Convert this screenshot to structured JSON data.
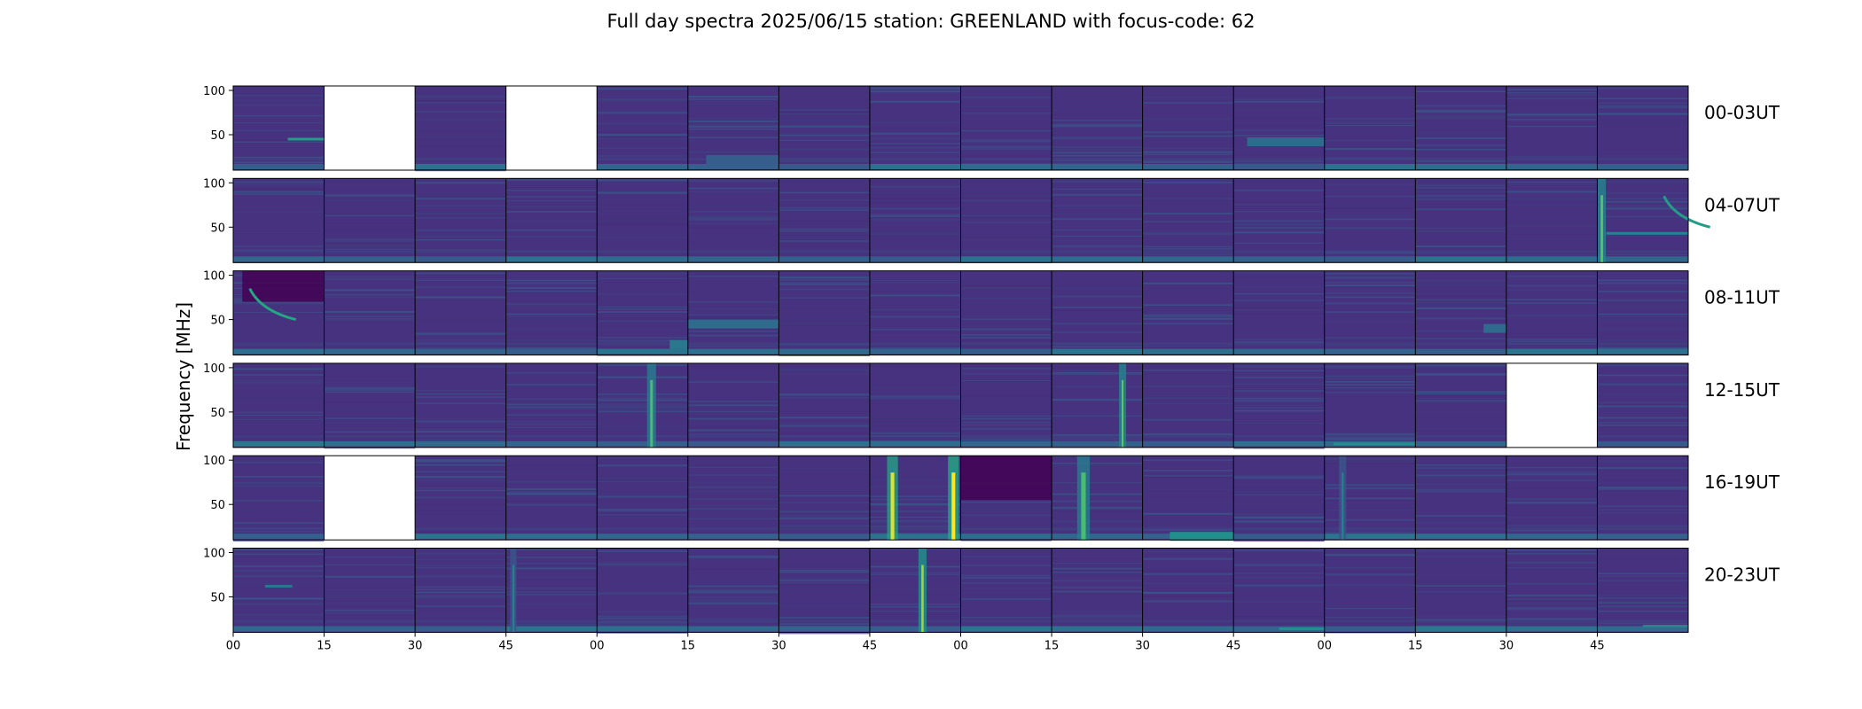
{
  "chart_data": {
    "type": "heatmap",
    "title": "Full day spectra 2025/06/15 station: GREENLAND with focus-code: 62",
    "ylabel": "Frequency [MHz]",
    "y_ticks": [
      "100",
      "50"
    ],
    "ylim_mhz": [
      10,
      105
    ],
    "x_ticks": [
      "00",
      "15",
      "30",
      "45",
      "00",
      "15",
      "30",
      "45",
      "00",
      "15",
      "30",
      "45",
      "00",
      "15",
      "30",
      "45"
    ],
    "colormap": "viridis",
    "colors": {
      "low": "#440154",
      "background": "#46327e",
      "mid": "#21918c",
      "high": "#fde725"
    },
    "rows": [
      {
        "label": "00-03UT",
        "panels": [
          "data",
          "missing",
          "data",
          "missing",
          "data",
          "data",
          "data",
          "data",
          "data",
          "data",
          "data",
          "data",
          "data",
          "data",
          "data",
          "data"
        ],
        "events": [
          {
            "panel": 0,
            "kind": "line",
            "mhz": 45,
            "from": 0.6,
            "to": 1.0,
            "intensity": 0.55
          },
          {
            "panel": 5,
            "kind": "band",
            "mhz": 22,
            "from": 0.2,
            "to": 1.0,
            "intensity": 0.3
          },
          {
            "panel": 11,
            "kind": "band",
            "mhz": 42,
            "from": 0.15,
            "to": 1.0,
            "intensity": 0.35
          }
        ]
      },
      {
        "label": "04-07UT",
        "panels": [
          "data",
          "data",
          "data",
          "data",
          "data",
          "data",
          "data",
          "data",
          "data",
          "data",
          "data",
          "data",
          "data",
          "data",
          "data",
          "data"
        ],
        "events": [
          {
            "panel": 15,
            "kind": "burst",
            "pos": 0.05,
            "width": 0.05,
            "intensity": 0.75
          },
          {
            "panel": 15,
            "kind": "line",
            "mhz": 43,
            "from": 0.1,
            "to": 1.0,
            "intensity": 0.45
          },
          {
            "panel": 15,
            "kind": "drift",
            "pos": 0.85,
            "intensity": 0.55
          }
        ]
      },
      {
        "label": "08-11UT",
        "panels": [
          "data",
          "data",
          "data",
          "data",
          "data",
          "data",
          "data",
          "data",
          "data",
          "data",
          "data",
          "data",
          "data",
          "data",
          "data",
          "data"
        ],
        "events": [
          {
            "panel": 0,
            "kind": "dark",
            "mhz": 70,
            "from": 0.1,
            "to": 1.0
          },
          {
            "panel": 0,
            "kind": "drift",
            "pos": 0.3,
            "intensity": 0.6
          },
          {
            "panel": 4,
            "kind": "band",
            "mhz": 22,
            "from": 0.8,
            "to": 1.0,
            "intensity": 0.4
          },
          {
            "panel": 5,
            "kind": "band",
            "mhz": 45,
            "from": 0.0,
            "to": 1.0,
            "intensity": 0.35
          },
          {
            "panel": 13,
            "kind": "band",
            "mhz": 40,
            "from": 0.75,
            "to": 1.0,
            "intensity": 0.35
          }
        ]
      },
      {
        "label": "12-15UT",
        "panels": [
          "data",
          "data",
          "data",
          "data",
          "data",
          "data",
          "data",
          "data",
          "data",
          "data",
          "data",
          "data",
          "data",
          "data",
          "missing",
          "data"
        ],
        "events": [
          {
            "panel": 4,
            "kind": "burst",
            "pos": 0.6,
            "width": 0.06,
            "intensity": 0.7
          },
          {
            "panel": 9,
            "kind": "burst",
            "pos": 0.78,
            "width": 0.04,
            "intensity": 0.75
          },
          {
            "panel": 12,
            "kind": "line",
            "mhz": 14,
            "from": 0.1,
            "to": 1.0,
            "intensity": 0.5
          }
        ]
      },
      {
        "label": "16-19UT",
        "panels": [
          "data",
          "missing",
          "data",
          "data",
          "data",
          "data",
          "data",
          "data",
          "data",
          "data",
          "data",
          "data",
          "data",
          "data",
          "data",
          "data"
        ],
        "events": [
          {
            "panel": 7,
            "kind": "burst",
            "pos": 0.25,
            "width": 0.08,
            "intensity": 0.95
          },
          {
            "panel": 7,
            "kind": "burst",
            "pos": 0.92,
            "width": 0.08,
            "intensity": 1.0
          },
          {
            "panel": 8,
            "kind": "dark",
            "mhz": 55,
            "from": 0.0,
            "to": 1.0
          },
          {
            "panel": 9,
            "kind": "burst",
            "pos": 0.35,
            "width": 0.1,
            "intensity": 0.7
          },
          {
            "panel": 10,
            "kind": "band",
            "mhz": 14,
            "from": 0.3,
            "to": 1.0,
            "intensity": 0.5
          },
          {
            "panel": 12,
            "kind": "burst",
            "pos": 0.2,
            "width": 0.04,
            "intensity": 0.45
          }
        ]
      },
      {
        "label": "20-23UT",
        "panels": [
          "data",
          "data",
          "data",
          "data",
          "data",
          "data",
          "data",
          "data",
          "data",
          "data",
          "data",
          "data",
          "data",
          "data",
          "data",
          "data"
        ],
        "events": [
          {
            "panel": 0,
            "kind": "line",
            "mhz": 62,
            "from": 0.35,
            "to": 0.65,
            "intensity": 0.4
          },
          {
            "panel": 3,
            "kind": "burst",
            "pos": 0.08,
            "width": 0.03,
            "intensity": 0.45
          },
          {
            "panel": 7,
            "kind": "burst",
            "pos": 0.58,
            "width": 0.05,
            "intensity": 0.85
          },
          {
            "panel": 11,
            "kind": "line",
            "mhz": 14,
            "from": 0.5,
            "to": 1.0,
            "intensity": 0.5
          },
          {
            "panel": 15,
            "kind": "line",
            "mhz": 17,
            "from": 0.5,
            "to": 1.0,
            "intensity": 0.45
          }
        ]
      }
    ]
  }
}
